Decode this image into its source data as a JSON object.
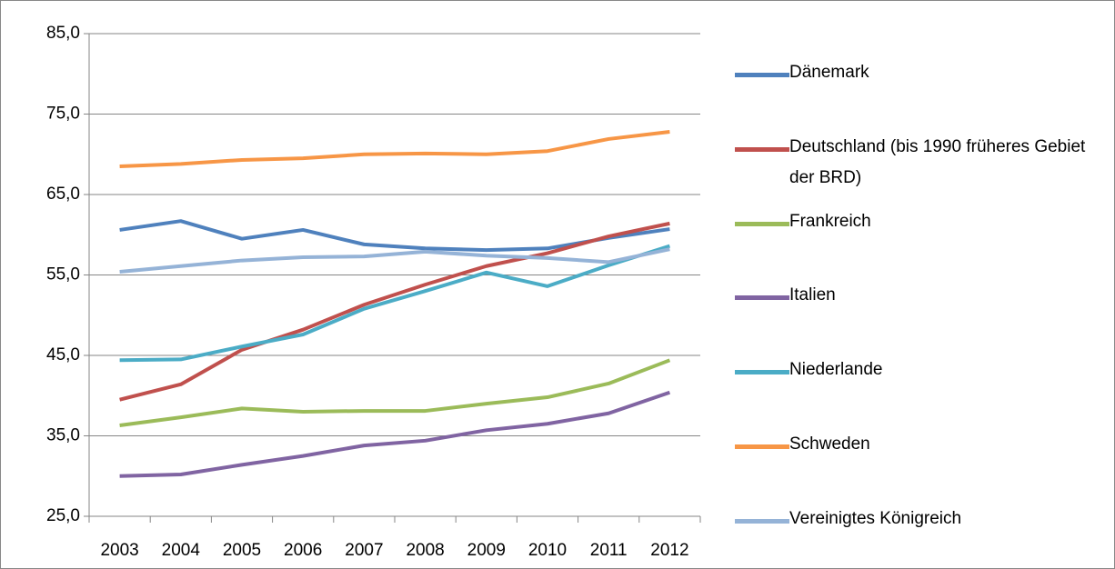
{
  "chart_data": {
    "type": "line",
    "categories": [
      "2003",
      "2004",
      "2005",
      "2006",
      "2007",
      "2008",
      "2009",
      "2010",
      "2011",
      "2012"
    ],
    "series": [
      {
        "name": "Dänemark",
        "color": "#4f81bd",
        "values": [
          60.6,
          61.7,
          59.5,
          60.6,
          58.8,
          58.3,
          58.1,
          58.3,
          59.6,
          60.7
        ]
      },
      {
        "name": "Deutschland (bis 1990 früheres Gebiet der BRD)",
        "color": "#c0504d",
        "values": [
          39.5,
          41.4,
          45.7,
          48.2,
          51.3,
          53.8,
          56.1,
          57.7,
          59.8,
          61.4
        ]
      },
      {
        "name": "Frankreich",
        "color": "#9bbb59",
        "values": [
          36.3,
          37.3,
          38.4,
          38.0,
          38.1,
          38.1,
          39.0,
          39.8,
          41.5,
          44.4
        ]
      },
      {
        "name": "Italien",
        "color": "#8064a2",
        "values": [
          30.0,
          30.2,
          31.4,
          32.5,
          33.8,
          34.4,
          35.7,
          36.5,
          37.8,
          40.4
        ]
      },
      {
        "name": "Niederlande",
        "color": "#4bacc6",
        "values": [
          44.4,
          44.5,
          46.1,
          47.6,
          50.8,
          53.0,
          55.3,
          53.6,
          56.2,
          58.6
        ]
      },
      {
        "name": "Schweden",
        "color": "#f79646",
        "values": [
          68.5,
          68.8,
          69.3,
          69.5,
          70.0,
          70.1,
          70.0,
          70.4,
          71.9,
          72.8
        ]
      },
      {
        "name": "Vereinigtes Königreich",
        "color": "#95b3d7",
        "values": [
          55.4,
          56.1,
          56.8,
          57.2,
          57.3,
          57.9,
          57.4,
          57.1,
          56.6,
          58.2
        ]
      }
    ],
    "ylim": [
      25,
      85
    ],
    "yticks": [
      {
        "value": 25,
        "label": "25,0"
      },
      {
        "value": 35,
        "label": "35,0"
      },
      {
        "value": 45,
        "label": "45,0"
      },
      {
        "value": 55,
        "label": "55,0"
      },
      {
        "value": 65,
        "label": "65,0"
      },
      {
        "value": 75,
        "label": "75,0"
      },
      {
        "value": 85,
        "label": "85,0"
      }
    ],
    "grid": true,
    "legend": "right"
  }
}
